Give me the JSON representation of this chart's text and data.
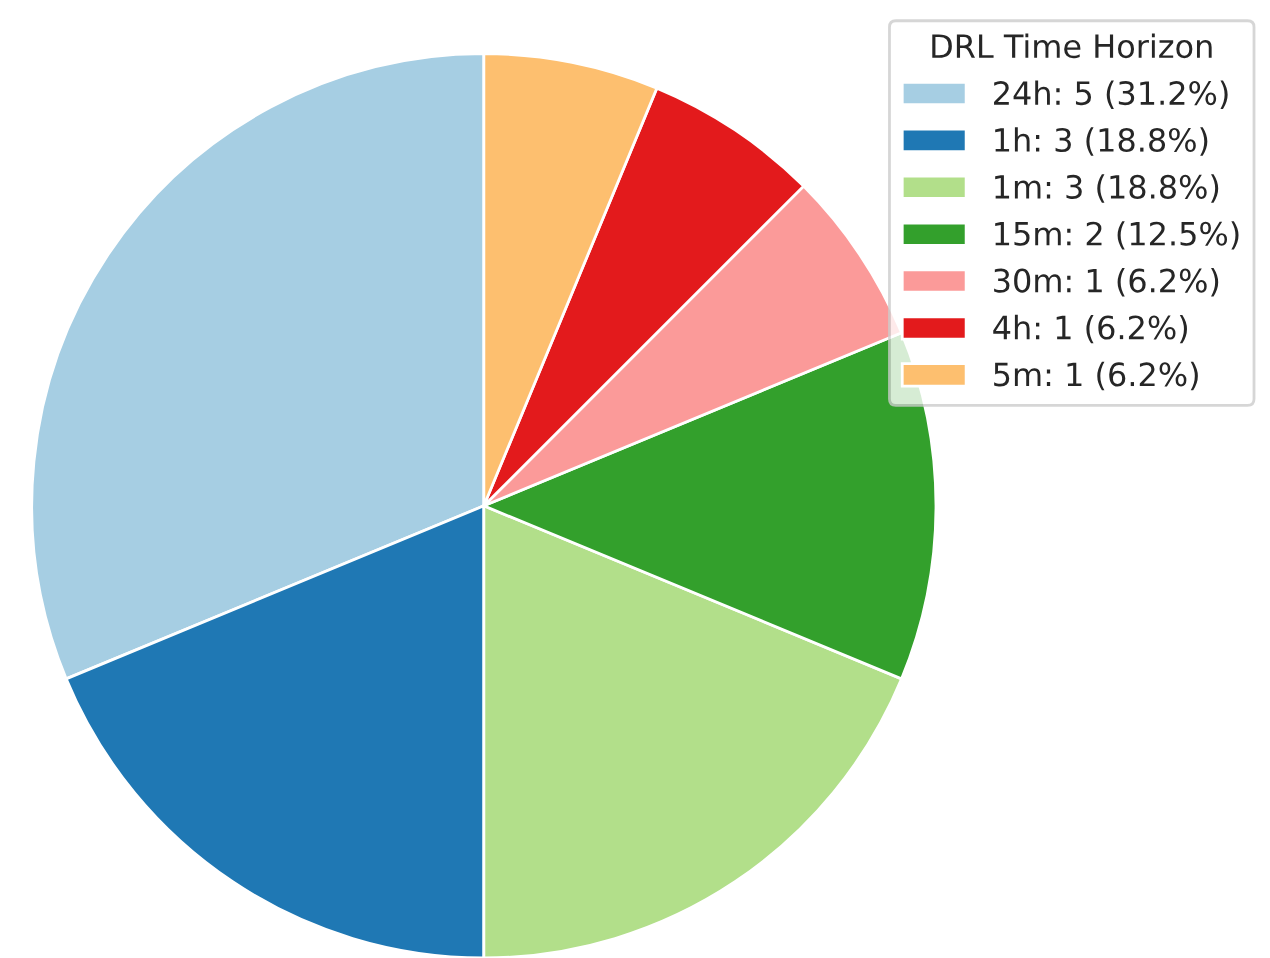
{
  "chart_data": {
    "type": "pie",
    "legend_title": "DRL Time Horizon",
    "categories": [
      "24h: 5 (31.2%)",
      "1h: 3 (18.8%)",
      "1m: 3 (18.8%)",
      "15m: 2 (12.5%)",
      "30m: 1 (6.2%)",
      "4h: 1 (6.2%)",
      "5m: 1 (6.2%)"
    ],
    "values": [
      5,
      3,
      3,
      2,
      1,
      1,
      1
    ],
    "colors": [
      "#a6cee3",
      "#1f78b4",
      "#b2df8a",
      "#33a02c",
      "#fb9a99",
      "#e31a1c",
      "#fdbf6f"
    ],
    "legend": "top right"
  }
}
